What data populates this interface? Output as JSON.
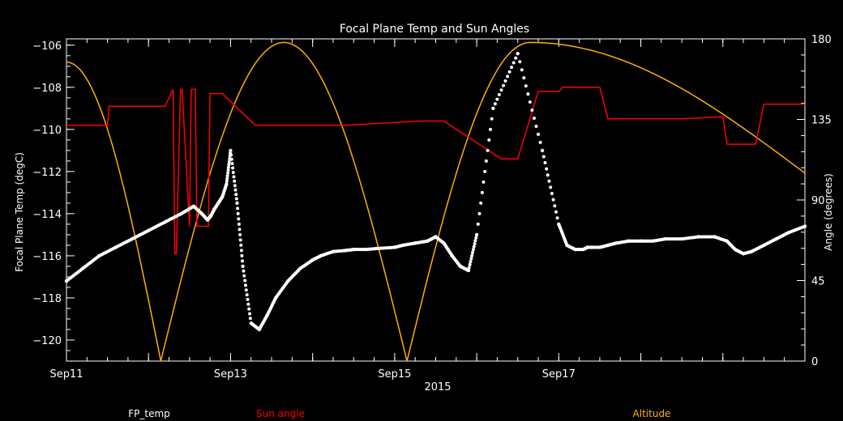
{
  "chart_data": {
    "type": "line",
    "title": "Focal Plane Temp and Sun Angles",
    "xlabel": "2015",
    "ylabel_left": "Focal Plane Temp (degC)",
    "ylabel_right": "Angle (degrees)",
    "xlim": [
      11.0,
      20.0
    ],
    "ylim_left": [
      -121.0,
      -105.7
    ],
    "ylim_right": [
      0,
      180
    ],
    "x_ticks": [
      {
        "x": 11,
        "label": "Sep11"
      },
      {
        "x": 13,
        "label": "Sep13"
      },
      {
        "x": 15,
        "label": "Sep15"
      },
      {
        "x": 17,
        "label": "Sep17"
      }
    ],
    "y_ticks_left": [
      -120,
      -118,
      -116,
      -114,
      -112,
      -110,
      -108,
      -106
    ],
    "y_ticks_right": [
      0,
      45,
      90,
      135,
      180
    ],
    "grid": false,
    "colors": {
      "fp_temp": "#ffffff",
      "sun_angle": "#ff0000",
      "altitude": "#ffb000",
      "axes": "#ffffff"
    },
    "series": [
      {
        "name": "FP_temp",
        "axis": "left",
        "style": "markers",
        "x": [
          11.0,
          11.2,
          11.4,
          11.6,
          11.8,
          12.0,
          12.2,
          12.4,
          12.55,
          12.65,
          12.72,
          12.76,
          12.8,
          12.85,
          12.9,
          12.95,
          13.0,
          13.08,
          13.15,
          13.25,
          13.35,
          13.45,
          13.55,
          13.7,
          13.85,
          14.0,
          14.1,
          14.25,
          14.4,
          14.5,
          14.65,
          14.8,
          15.0,
          15.1,
          15.25,
          15.4,
          15.5,
          15.6,
          15.7,
          15.8,
          15.9,
          16.0,
          16.2,
          16.5,
          16.8,
          17.0,
          17.1,
          17.2,
          17.3,
          17.35,
          17.4,
          17.5,
          17.6,
          17.7,
          17.85,
          18.0,
          18.15,
          18.3,
          18.5,
          18.7,
          18.9,
          19.05,
          19.15,
          19.25,
          19.35,
          19.5,
          19.65,
          19.8,
          20.0
        ],
        "y": [
          -117.2,
          -116.6,
          -116.0,
          -115.6,
          -115.2,
          -114.8,
          -114.4,
          -114.0,
          -113.65,
          -114.0,
          -114.3,
          -114.1,
          -113.8,
          -113.5,
          -113.2,
          -112.6,
          -111.0,
          -113.5,
          -116.5,
          -119.2,
          -119.5,
          -118.8,
          -118.0,
          -117.2,
          -116.6,
          -116.2,
          -116.0,
          -115.8,
          -115.75,
          -115.7,
          -115.7,
          -115.65,
          -115.6,
          -115.5,
          -115.4,
          -115.3,
          -115.1,
          -115.4,
          -116.0,
          -116.5,
          -116.7,
          -115.0,
          -109.0,
          -106.4,
          -111.0,
          -114.5,
          -115.5,
          -115.7,
          -115.7,
          -115.6,
          -115.6,
          -115.6,
          -115.5,
          -115.4,
          -115.3,
          -115.3,
          -115.3,
          -115.2,
          -115.2,
          -115.1,
          -115.1,
          -115.3,
          -115.7,
          -115.9,
          -115.8,
          -115.5,
          -115.2,
          -114.9,
          -114.6
        ]
      },
      {
        "name": "Sun angle",
        "axis": "left",
        "style": "steps",
        "x": [
          11.0,
          11.5,
          11.52,
          12.2,
          12.3,
          12.32,
          12.34,
          12.39,
          12.41,
          12.5,
          12.52,
          12.57,
          12.59,
          12.73,
          12.75,
          12.9,
          13.3,
          14.0,
          14.4,
          15.3,
          15.6,
          16.3,
          16.5,
          16.75,
          17.0,
          17.05,
          17.1,
          17.25,
          17.5,
          17.6,
          18.0,
          18.3,
          18.5,
          19.0,
          19.05,
          19.3,
          19.4,
          19.5,
          20.0
        ],
        "y": [
          -109.8,
          -109.8,
          -108.9,
          -108.9,
          -108.1,
          -115.9,
          -115.9,
          -108.1,
          -108.1,
          -114.6,
          -108.1,
          -108.1,
          -114.6,
          -114.6,
          -108.3,
          -108.3,
          -109.8,
          -109.8,
          -109.8,
          -109.6,
          -109.6,
          -111.4,
          -111.4,
          -108.2,
          -108.2,
          -108.0,
          -108.0,
          -108.0,
          -108.0,
          -109.5,
          -109.5,
          -109.5,
          -109.5,
          -109.4,
          -110.7,
          -110.7,
          -110.7,
          -108.8,
          -108.8
        ]
      },
      {
        "name": "Altitude",
        "axis": "right",
        "style": "line",
        "function": "arc",
        "x": [
          11.0,
          12.15,
          13.65,
          15.15,
          16.65,
          20.0
        ],
        "y": [
          167,
          0,
          178,
          0,
          178,
          105
        ]
      }
    ],
    "legend": [
      "FP_temp",
      "Sun angle",
      "Altitude"
    ],
    "legend_position": "bottom"
  }
}
